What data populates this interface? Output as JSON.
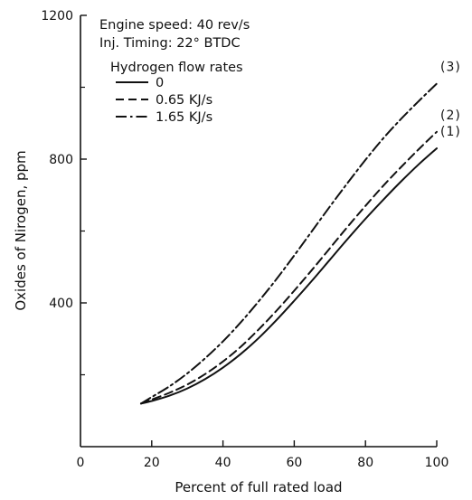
{
  "chart_data": {
    "type": "line",
    "title": "",
    "xlabel": "Percent of full rated load",
    "ylabel": "Oxides of Nirogen,   ppm",
    "xlim": [
      0,
      100
    ],
    "ylim": [
      0,
      1200
    ],
    "x_ticks": [
      "0",
      "20",
      "40",
      "60",
      "80",
      "100"
    ],
    "y_ticks": [
      "400",
      "800",
      "1200"
    ],
    "y_minor_ticks": [
      200,
      600,
      1000
    ],
    "grid": false,
    "annotations": [
      "Engine speed: 40 rev/s",
      "Inj. Timing: 22° BTDC"
    ],
    "legend_title": "Hydrogen flow rates",
    "legend_position": "top-left",
    "series": [
      {
        "name": "0",
        "curve_label": "(1)",
        "dash": "solid",
        "x": [
          17,
          20,
          25,
          30,
          35,
          40,
          45,
          50,
          55,
          60,
          65,
          70,
          75,
          80,
          85,
          90,
          95,
          100
        ],
        "y": [
          120,
          127,
          142,
          162,
          188,
          220,
          258,
          302,
          352,
          406,
          462,
          520,
          578,
          634,
          687,
          738,
          786,
          830
        ]
      },
      {
        "name": "0.65 KJ/s",
        "curve_label": "(2)",
        "dash": "dashed",
        "x": [
          17,
          20,
          25,
          30,
          35,
          40,
          45,
          50,
          55,
          60,
          65,
          70,
          75,
          80,
          85,
          90,
          95,
          100
        ],
        "y": [
          120,
          131,
          150,
          173,
          202,
          237,
          278,
          326,
          378,
          434,
          492,
          552,
          612,
          670,
          726,
          778,
          828,
          876
        ]
      },
      {
        "name": "1.65 KJ/s",
        "curve_label": "(3)",
        "dash": "dashdot",
        "x": [
          17,
          20,
          25,
          30,
          35,
          40,
          45,
          50,
          55,
          60,
          65,
          70,
          75,
          80,
          85,
          90,
          95,
          100
        ],
        "y": [
          120,
          138,
          168,
          204,
          246,
          293,
          346,
          404,
          466,
          532,
          600,
          668,
          734,
          798,
          858,
          912,
          962,
          1010
        ]
      }
    ]
  }
}
